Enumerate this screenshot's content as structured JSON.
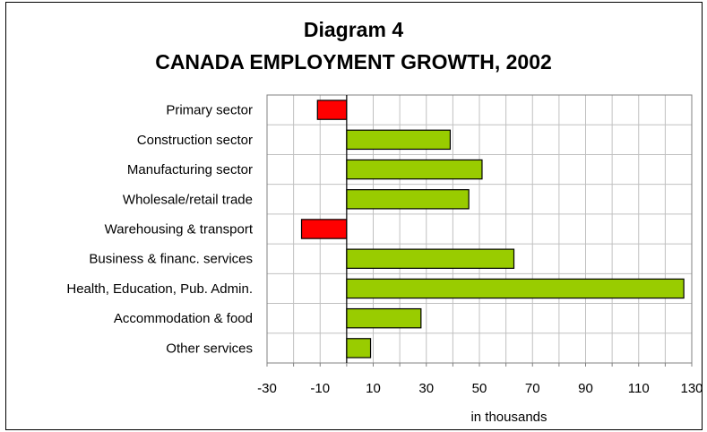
{
  "chart_data": {
    "type": "bar",
    "orientation": "horizontal",
    "title": "Diagram 4",
    "subtitle": "CANADA EMPLOYMENT GROWTH, 2002",
    "xlabel": "in thousands",
    "ylabel": "",
    "xlim": [
      -30,
      130
    ],
    "x_ticks": [
      "-30",
      "-10",
      "10",
      "30",
      "50",
      "70",
      "90",
      "110",
      "130"
    ],
    "grid": true,
    "categories": [
      "Primary sector",
      "Construction sector",
      "Manufacturing sector",
      "Wholesale/retail trade",
      "Warehousing & transport",
      "Business & financ. services",
      "Health, Education, Pub. Admin.",
      "Accommodation & food",
      "Other services"
    ],
    "values": [
      -11,
      39,
      51,
      46,
      -17,
      63,
      127,
      28,
      9
    ],
    "colors": {
      "positive": "#99cc00",
      "negative": "#ff0000",
      "grid": "#c0c0c0",
      "axis": "#808080"
    }
  }
}
